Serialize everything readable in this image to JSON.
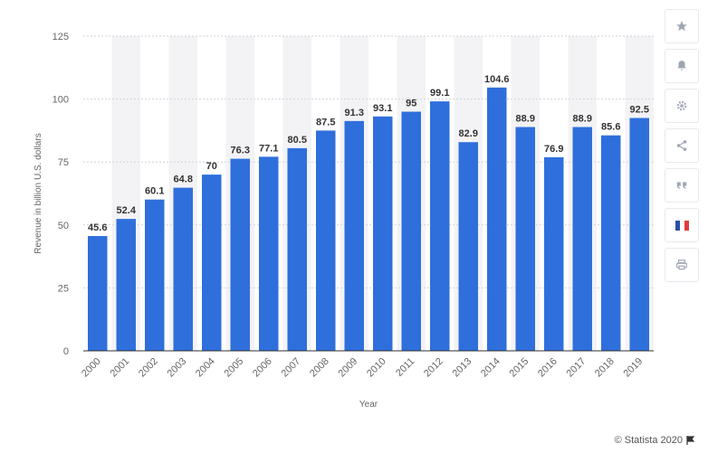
{
  "chart_data": {
    "type": "bar",
    "categories": [
      "2000",
      "2001",
      "2002",
      "2003",
      "2004",
      "2005",
      "2006",
      "2007",
      "2008",
      "2009",
      "2010",
      "2011",
      "2012",
      "2013",
      "2014",
      "2015",
      "2016",
      "2017",
      "2018",
      "2019"
    ],
    "values": [
      45.6,
      52.4,
      60.1,
      64.8,
      70,
      76.3,
      77.1,
      80.5,
      87.5,
      91.3,
      93.1,
      95,
      99.1,
      82.9,
      104.6,
      88.9,
      76.9,
      88.9,
      85.6,
      92.5
    ],
    "value_labels": [
      "45.6",
      "52.4",
      "60.1",
      "64.8",
      "70",
      "76.3",
      "77.1",
      "80.5",
      "87.5",
      "91.3",
      "93.1",
      "95",
      "99.1",
      "82.9",
      "104.6",
      "88.9",
      "76.9",
      "88.9",
      "85.6",
      "92.5"
    ],
    "xlabel": "Year",
    "ylabel": "Revenue in billion U.S. dollars",
    "ylim": [
      0,
      125
    ],
    "yticks": [
      0,
      25,
      50,
      75,
      100,
      125
    ],
    "ytick_labels": [
      "0",
      "25",
      "50",
      "75",
      "100",
      "125"
    ],
    "bar_color": "#2f6fdc",
    "alternating_band_color": "#f3f3f5",
    "grid": true
  },
  "toolbar": {
    "buttons": [
      "star-icon",
      "bell-icon",
      "gear-icon",
      "share-icon",
      "quote-icon",
      "flag-fr-icon",
      "print-icon"
    ]
  },
  "credit": {
    "text": "© Statista 2020"
  }
}
